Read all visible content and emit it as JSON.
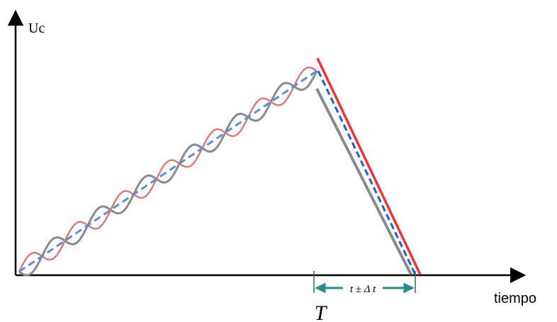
{
  "diagram": {
    "y_axis_label": "Uc",
    "x_axis_label": "tiempo",
    "marker_label": "T",
    "interval_label": "t ± Δ t",
    "colors": {
      "axis": "#000000",
      "red_wave": "#e07a7a",
      "gray_wave": "#8a8a8a",
      "blue_dashed": "#5b8fd6",
      "red_descent": "#ee3333",
      "blue_descent": "#1f5fd0",
      "interval_arrow": "#2e8b8b"
    }
  }
}
